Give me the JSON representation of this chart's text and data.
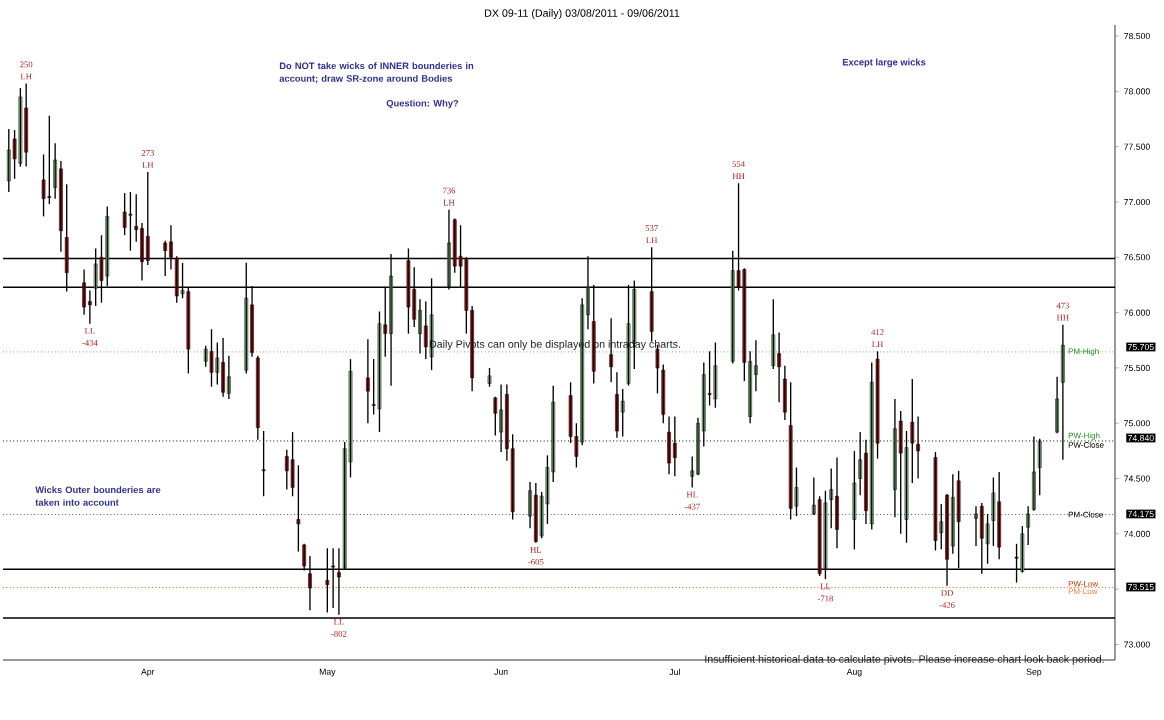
{
  "chart_data": {
    "type": "candlestick",
    "title": "DX 09-11 (Daily)  03/08/2011 - 09/06/2011",
    "x": [
      "2011-03-08",
      "2011-03-09",
      "2011-03-10",
      "2011-03-11",
      "2011-03-14",
      "2011-03-15",
      "2011-03-16",
      "2011-03-17",
      "2011-03-18",
      "2011-03-21",
      "2011-03-22",
      "2011-03-23",
      "2011-03-24",
      "2011-03-25",
      "2011-03-28",
      "2011-03-29",
      "2011-03-30",
      "2011-03-31",
      "2011-04-01",
      "2011-04-04",
      "2011-04-05",
      "2011-04-06",
      "2011-04-07",
      "2011-04-08",
      "2011-04-11",
      "2011-04-12",
      "2011-04-13",
      "2011-04-14",
      "2011-04-15",
      "2011-04-18",
      "2011-04-19",
      "2011-04-20",
      "2011-04-21",
      "2011-04-25",
      "2011-04-26",
      "2011-04-27",
      "2011-04-28",
      "2011-04-29",
      "2011-05-02",
      "2011-05-03",
      "2011-05-04",
      "2011-05-05",
      "2011-05-06",
      "2011-05-09",
      "2011-05-10",
      "2011-05-11",
      "2011-05-12",
      "2011-05-13",
      "2011-05-16",
      "2011-05-17",
      "2011-05-18",
      "2011-05-19",
      "2011-05-20",
      "2011-05-23",
      "2011-05-24",
      "2011-05-25",
      "2011-05-26",
      "2011-05-27",
      "2011-05-30",
      "2011-05-31",
      "2011-06-01",
      "2011-06-02",
      "2011-06-03",
      "2011-06-06",
      "2011-06-07",
      "2011-06-08",
      "2011-06-09",
      "2011-06-10",
      "2011-06-13",
      "2011-06-14",
      "2011-06-15",
      "2011-06-16",
      "2011-06-17",
      "2011-06-20",
      "2011-06-21",
      "2011-06-22",
      "2011-06-23",
      "2011-06-24",
      "2011-06-27",
      "2011-06-28",
      "2011-06-29",
      "2011-06-30",
      "2011-07-01",
      "2011-07-04",
      "2011-07-05",
      "2011-07-06",
      "2011-07-07",
      "2011-07-08",
      "2011-07-11",
      "2011-07-12",
      "2011-07-13",
      "2011-07-14",
      "2011-07-15",
      "2011-07-18",
      "2011-07-19",
      "2011-07-20",
      "2011-07-21",
      "2011-07-22",
      "2011-07-25",
      "2011-07-26",
      "2011-07-27",
      "2011-07-28",
      "2011-07-29",
      "2011-08-01",
      "2011-08-02",
      "2011-08-03",
      "2011-08-04",
      "2011-08-05",
      "2011-08-08",
      "2011-08-09",
      "2011-08-10",
      "2011-08-11",
      "2011-08-12",
      "2011-08-15",
      "2011-08-16",
      "2011-08-17",
      "2011-08-18",
      "2011-08-19",
      "2011-08-22",
      "2011-08-23",
      "2011-08-24",
      "2011-08-25",
      "2011-08-26",
      "2011-08-29",
      "2011-08-30",
      "2011-08-31",
      "2011-09-01",
      "2011-09-02",
      "2011-09-05",
      "2011-09-06"
    ],
    "ohlc": [
      [
        77.19,
        77.66,
        77.09,
        77.47
      ],
      [
        77.57,
        77.65,
        77.21,
        77.39
      ],
      [
        77.35,
        78.03,
        77.32,
        77.95
      ],
      [
        77.85,
        78.07,
        77.32,
        77.45
      ],
      [
        77.2,
        77.43,
        76.87,
        77.03
      ],
      [
        77.05,
        77.78,
        76.98,
        77.04
      ],
      [
        77.13,
        77.53,
        77.03,
        77.38
      ],
      [
        77.3,
        77.37,
        76.55,
        76.74
      ],
      [
        76.68,
        77.16,
        76.19,
        76.36
      ],
      [
        76.27,
        76.39,
        75.98,
        76.05
      ],
      [
        76.1,
        76.2,
        75.9,
        76.07
      ],
      [
        76.22,
        76.58,
        76.06,
        76.44
      ],
      [
        76.5,
        76.7,
        76.09,
        76.29
      ],
      [
        76.33,
        76.96,
        76.24,
        76.87
      ],
      [
        76.91,
        77.08,
        76.7,
        76.77
      ],
      [
        76.89,
        77.09,
        76.56,
        76.88
      ],
      [
        76.78,
        77.07,
        76.64,
        76.75
      ],
      [
        76.76,
        76.81,
        76.29,
        76.46
      ],
      [
        76.69,
        77.27,
        76.43,
        76.47
      ],
      [
        76.63,
        76.65,
        76.33,
        76.56
      ],
      [
        76.64,
        76.79,
        76.39,
        76.5
      ],
      [
        76.49,
        76.51,
        76.09,
        76.15
      ],
      [
        76.17,
        76.45,
        76.13,
        76.2
      ],
      [
        76.19,
        76.23,
        75.45,
        75.67
      ],
      [
        75.56,
        75.7,
        75.51,
        75.67
      ],
      [
        75.65,
        75.85,
        75.33,
        75.46
      ],
      [
        75.46,
        75.73,
        75.35,
        75.59
      ],
      [
        75.55,
        75.77,
        75.24,
        75.28
      ],
      [
        75.27,
        75.61,
        75.22,
        75.42
      ],
      [
        75.48,
        76.45,
        75.45,
        76.13
      ],
      [
        76.07,
        76.24,
        75.6,
        75.64
      ],
      [
        75.59,
        75.61,
        74.85,
        74.96
      ],
      [
        74.58,
        74.93,
        74.34,
        74.57
      ],
      [
        74.7,
        74.76,
        74.4,
        74.57
      ],
      [
        74.67,
        74.92,
        74.34,
        74.42
      ],
      [
        74.13,
        74.62,
        73.84,
        74.09
      ],
      [
        73.9,
        73.91,
        73.67,
        73.71
      ],
      [
        73.64,
        73.8,
        73.31,
        73.51
      ],
      [
        73.58,
        73.87,
        73.29,
        73.54
      ],
      [
        73.71,
        73.87,
        73.33,
        73.7
      ],
      [
        73.65,
        73.87,
        73.27,
        73.61
      ],
      [
        73.69,
        74.83,
        73.68,
        74.77
      ],
      [
        74.65,
        75.58,
        74.51,
        75.47
      ],
      [
        75.41,
        75.76,
        75.0,
        75.29
      ],
      [
        75.17,
        75.58,
        75.08,
        75.16
      ],
      [
        75.13,
        76.01,
        74.92,
        75.9
      ],
      [
        75.89,
        76.23,
        75.6,
        75.81
      ],
      [
        75.81,
        76.53,
        75.34,
        76.33
      ],
      [
        76.47,
        76.58,
        75.81,
        76.05
      ],
      [
        76.21,
        76.41,
        75.87,
        75.94
      ],
      [
        75.81,
        76.12,
        75.63,
        76.02
      ],
      [
        75.88,
        76.1,
        75.58,
        75.69
      ],
      [
        75.6,
        76.31,
        75.48,
        75.98
      ],
      [
        76.24,
        76.93,
        76.21,
        76.63
      ],
      [
        76.84,
        76.85,
        76.36,
        76.42
      ],
      [
        76.51,
        76.79,
        76.23,
        76.42
      ],
      [
        76.49,
        76.5,
        75.81,
        76.02
      ],
      [
        76.02,
        76.06,
        75.29,
        75.41
      ],
      [
        75.36,
        75.5,
        75.33,
        75.43
      ],
      [
        75.23,
        75.24,
        74.89,
        75.09
      ],
      [
        74.92,
        75.35,
        74.74,
        75.12
      ],
      [
        75.26,
        75.35,
        74.66,
        74.77
      ],
      [
        74.77,
        74.9,
        74.13,
        74.2
      ],
      [
        74.16,
        74.47,
        74.05,
        74.39
      ],
      [
        74.35,
        74.46,
        73.92,
        73.93
      ],
      [
        73.98,
        74.38,
        73.96,
        74.34
      ],
      [
        74.27,
        74.71,
        74.09,
        74.6
      ],
      [
        74.56,
        75.34,
        74.47,
        75.19
      ],
      [
        75.25,
        75.37,
        74.82,
        74.88
      ],
      [
        74.88,
        75.0,
        74.6,
        74.7
      ],
      [
        74.83,
        76.13,
        74.8,
        76.07
      ],
      [
        75.98,
        76.51,
        75.85,
        76.23
      ],
      [
        75.92,
        76.25,
        75.36,
        75.47
      ],
      [
        75.62,
        75.95,
        75.37,
        75.51
      ],
      [
        75.26,
        75.46,
        74.87,
        74.93
      ],
      [
        75.1,
        75.31,
        74.88,
        75.2
      ],
      [
        75.36,
        76.25,
        75.34,
        75.9
      ],
      [
        75.72,
        76.29,
        75.49,
        76.21
      ],
      [
        76.19,
        76.59,
        75.74,
        75.83
      ],
      [
        75.67,
        75.71,
        75.27,
        75.5
      ],
      [
        75.48,
        75.53,
        75.0,
        75.08
      ],
      [
        74.92,
        75.06,
        74.54,
        74.64
      ],
      [
        74.82,
        75.06,
        74.52,
        74.69
      ],
      [
        74.52,
        74.7,
        74.42,
        74.57
      ],
      [
        74.54,
        75.05,
        74.53,
        75.0
      ],
      [
        74.93,
        75.55,
        74.79,
        75.44
      ],
      [
        75.27,
        75.65,
        75.16,
        75.26
      ],
      [
        75.22,
        75.73,
        75.14,
        75.52
      ],
      [
        75.56,
        76.56,
        75.54,
        76.38
      ],
      [
        76.38,
        77.17,
        76.2,
        76.23
      ],
      [
        76.39,
        76.4,
        75.38,
        75.55
      ],
      [
        75.06,
        75.65,
        75.0,
        75.56
      ],
      [
        75.44,
        75.75,
        75.29,
        75.52
      ],
      [
        75.52,
        76.12,
        75.49,
        75.8
      ],
      [
        75.63,
        75.82,
        75.19,
        75.51
      ],
      [
        75.4,
        75.52,
        75.03,
        75.1
      ],
      [
        74.98,
        75.37,
        74.13,
        74.23
      ],
      [
        74.25,
        74.6,
        74.16,
        74.42
      ],
      [
        74.18,
        74.51,
        74.17,
        74.26
      ],
      [
        74.31,
        74.34,
        73.62,
        73.64
      ],
      [
        73.69,
        74.39,
        73.59,
        74.28
      ],
      [
        74.31,
        74.59,
        74.05,
        74.4
      ],
      [
        74.34,
        74.69,
        73.87,
        74.04
      ],
      [
        74.13,
        74.75,
        73.86,
        74.46
      ],
      [
        74.5,
        74.92,
        74.35,
        74.67
      ],
      [
        74.73,
        74.85,
        74.09,
        74.21
      ],
      [
        74.09,
        75.55,
        74.04,
        75.37
      ],
      [
        75.58,
        75.65,
        74.68,
        74.82
      ],
      [
        74.4,
        75.22,
        74.15,
        74.95
      ],
      [
        75.02,
        75.11,
        74.0,
        74.73
      ],
      [
        74.13,
        74.93,
        73.92,
        74.78
      ],
      [
        75.01,
        75.4,
        74.46,
        74.82
      ],
      [
        74.81,
        75.06,
        74.5,
        74.75
      ],
      [
        74.69,
        74.74,
        73.85,
        73.94
      ],
      [
        74.01,
        74.27,
        73.86,
        74.11
      ],
      [
        74.35,
        74.36,
        73.53,
        73.77
      ],
      [
        73.89,
        74.54,
        73.82,
        74.33
      ],
      [
        74.48,
        74.57,
        73.69,
        74.11
      ],
      [
        74.14,
        74.25,
        73.89,
        74.18
      ],
      [
        74.25,
        74.28,
        73.64,
        73.96
      ],
      [
        73.91,
        74.18,
        73.73,
        74.09
      ],
      [
        74.12,
        74.51,
        73.89,
        74.37
      ],
      [
        74.29,
        74.56,
        73.77,
        73.88
      ],
      [
        73.79,
        73.91,
        73.56,
        73.78
      ],
      [
        73.66,
        74.07,
        73.65,
        74.0
      ],
      [
        74.06,
        74.25,
        73.9,
        74.18
      ],
      [
        74.22,
        74.88,
        74.21,
        74.56
      ],
      [
        74.6,
        74.86,
        74.35,
        74.84
      ],
      [
        74.92,
        75.42,
        74.91,
        75.22
      ],
      [
        75.37,
        75.89,
        74.67,
        75.705
      ]
    ],
    "colors": [
      "#9be09b",
      "#cc1111",
      "#9be09b",
      "#cc1111",
      "#cc1111",
      "#cc1111",
      "#9be09b",
      "#cc1111",
      "#cc1111",
      "#cc1111",
      "#cc1111",
      "#9be09b",
      "#cc1111",
      "#9be09b",
      "#cc1111",
      "#cc1111",
      "#cc1111",
      "#cc1111",
      "#cc1111",
      "#cc1111",
      "#cc1111",
      "#cc1111",
      "#9be09b",
      "#cc1111",
      "#9be09b",
      "#cc1111",
      "#9be09b",
      "#cc1111",
      "#9be09b",
      "#9be09b",
      "#cc1111",
      "#cc1111",
      "#cc1111",
      "#cc1111",
      "#cc1111",
      "#cc1111",
      "#cc1111",
      "#cc1111",
      "#cc1111",
      "#cc1111",
      "#cc1111",
      "#9be09b",
      "#9be09b",
      "#cc1111",
      "#cc1111",
      "#9be09b",
      "#cc1111",
      "#9be09b",
      "#cc1111",
      "#cc1111",
      "#9be09b",
      "#cc1111",
      "#9be09b",
      "#9be09b",
      "#cc1111",
      "#cc1111",
      "#cc1111",
      "#cc1111",
      "#9be09b",
      "#cc1111",
      "#9be09b",
      "#cc1111",
      "#cc1111",
      "#9be09b",
      "#cc1111",
      "#9be09b",
      "#9be09b",
      "#9be09b",
      "#cc1111",
      "#cc1111",
      "#9be09b",
      "#9be09b",
      "#cc1111",
      "#cc1111",
      "#cc1111",
      "#9be09b",
      "#9be09b",
      "#9be09b",
      "#cc1111",
      "#cc1111",
      "#cc1111",
      "#cc1111",
      "#cc1111",
      "#9be09b",
      "#9be09b",
      "#9be09b",
      "#cc1111",
      "#9be09b",
      "#9be09b",
      "#cc1111",
      "#cc1111",
      "#9be09b",
      "#9be09b",
      "#9be09b",
      "#cc1111",
      "#cc1111",
      "#cc1111",
      "#9be09b",
      "#9be09b",
      "#cc1111",
      "#9be09b",
      "#9be09b",
      "#cc1111",
      "#9be09b",
      "#9be09b",
      "#cc1111",
      "#9be09b",
      "#cc1111",
      "#9be09b",
      "#cc1111",
      "#9be09b",
      "#cc1111",
      "#cc1111",
      "#cc1111",
      "#9be09b",
      "#cc1111",
      "#9be09b",
      "#cc1111",
      "#9be09b",
      "#cc1111",
      "#9be09b",
      "#9be09b",
      "#cc1111",
      "#cc1111",
      "#9be09b",
      "#9be09b",
      "#9be09b",
      "#9be09b",
      "#9be09b",
      "#9be09b"
    ],
    "xlim": [
      "2011-03-07",
      "2011-09-15"
    ],
    "xticks": [
      {
        "value": "2011-04-01",
        "label": "Apr"
      },
      {
        "value": "2011-05-02",
        "label": "May"
      },
      {
        "value": "2011-06-01",
        "label": "Jun"
      },
      {
        "value": "2011-07-01",
        "label": "Jul"
      },
      {
        "value": "2011-08-01",
        "label": "Aug"
      },
      {
        "value": "2011-09-01",
        "label": "Sep"
      }
    ],
    "ylim": [
      72.86,
      78.6
    ],
    "yticks": [
      {
        "value": 73,
        "label": "73.000"
      },
      {
        "value": 73.5,
        "label": null
      },
      {
        "value": 74,
        "label": "74.000"
      },
      {
        "value": 74.5,
        "label": "74.500"
      },
      {
        "value": 75,
        "label": "75.000"
      },
      {
        "value": 75.5,
        "label": "75.500"
      },
      {
        "value": 76,
        "label": "76.000"
      },
      {
        "value": 76.5,
        "label": "76.500"
      },
      {
        "value": 77,
        "label": "77.000"
      },
      {
        "value": 77.5,
        "label": "77.500"
      },
      {
        "value": 78,
        "label": "78.000"
      },
      {
        "value": 78.5,
        "label": "78.500"
      }
    ],
    "ref_lines": [
      {
        "axis": "y",
        "value": 76.49,
        "color": "#000000",
        "line_style": "solid"
      },
      {
        "axis": "y",
        "value": 76.23,
        "color": "#000000",
        "line_style": "solid"
      },
      {
        "axis": "y",
        "value": 73.68,
        "color": "#000000",
        "line_style": "solid"
      },
      {
        "axis": "y",
        "value": 73.24,
        "color": "#000000",
        "line_style": "solid"
      },
      {
        "axis": "y",
        "value": 75.645,
        "label": "PM-High",
        "color": "#228b22",
        "line_style": "dotted"
      },
      {
        "axis": "y",
        "value": 74.84,
        "label": "PW-High",
        "color": "#228b22",
        "line_style": "dotted"
      },
      {
        "axis": "y",
        "value": 74.84,
        "label": "PW-Close",
        "color": "#000000",
        "line_style": "dotted"
      },
      {
        "axis": "y",
        "value": 74.175,
        "label": "PM-Close",
        "color": "#000000",
        "line_style": "dotted"
      },
      {
        "axis": "y",
        "value": 73.515,
        "label": "PW-Low",
        "color": "#cc3300",
        "line_style": "dotted"
      },
      {
        "axis": "y",
        "value": 73.515,
        "label": "PM-Low",
        "color": "#f08040",
        "line_style": "dotted"
      }
    ],
    "annotations": [
      "Do NOT take wicks of INNER bounderies in account; draw SR-zone around Bodies",
      "Question: Why?",
      "Except large wicks",
      "Wicks Outer bounderies are taken into account",
      "Daily Pivots can only be displayed on intraday charts.",
      "Insufficient historical data to calculate pivots. Please increase chart look back period.",
      {
        "text": "250",
        "x": "2011-03-11",
        "y": 78.07
      },
      {
        "text": "LH",
        "x": "2011-03-11",
        "y": 78.07
      },
      {
        "text": "LL",
        "x": "2011-03-22",
        "y": 75.9
      },
      {
        "text": "-434",
        "x": "2011-03-22",
        "y": 75.9
      },
      {
        "text": "273",
        "x": "2011-04-01",
        "y": 77.27
      },
      {
        "text": "LH",
        "x": "2011-04-01",
        "y": 77.27
      },
      {
        "text": "LL",
        "x": "2011-05-04",
        "y": 73.27
      },
      {
        "text": "-802",
        "x": "2011-05-04",
        "y": 73.27
      },
      {
        "text": "736",
        "x": "2011-05-23",
        "y": 76.93
      },
      {
        "text": "LH",
        "x": "2011-05-23",
        "y": 76.93
      },
      {
        "text": "HL",
        "x": "2011-06-07",
        "y": 73.92
      },
      {
        "text": "-605",
        "x": "2011-06-07",
        "y": 73.92
      },
      {
        "text": "537",
        "x": "2011-06-27",
        "y": 76.59
      },
      {
        "text": "LH",
        "x": "2011-06-27",
        "y": 76.59
      },
      {
        "text": "HL",
        "x": "2011-07-04",
        "y": 74.42
      },
      {
        "text": "-437",
        "x": "2011-07-04",
        "y": 74.42
      },
      {
        "text": "554",
        "x": "2011-07-12",
        "y": 77.17
      },
      {
        "text": "HH",
        "x": "2011-07-12",
        "y": 77.17
      },
      {
        "text": "LL",
        "x": "2011-07-27",
        "y": 73.59
      },
      {
        "text": "-718",
        "x": "2011-07-27",
        "y": 73.59
      },
      {
        "text": "412",
        "x": "2011-08-05",
        "y": 75.65
      },
      {
        "text": "LH",
        "x": "2011-08-05",
        "y": 75.65
      },
      {
        "text": "DD",
        "x": "2011-08-17",
        "y": 73.53
      },
      {
        "text": "-426",
        "x": "2011-08-17",
        "y": 73.53
      },
      {
        "text": "473",
        "x": "2011-09-06",
        "y": 75.89
      },
      {
        "text": "HH",
        "x": "2011-09-06",
        "y": 75.89
      },
      "75.705",
      "74.840",
      "74.175",
      "73.515"
    ]
  }
}
